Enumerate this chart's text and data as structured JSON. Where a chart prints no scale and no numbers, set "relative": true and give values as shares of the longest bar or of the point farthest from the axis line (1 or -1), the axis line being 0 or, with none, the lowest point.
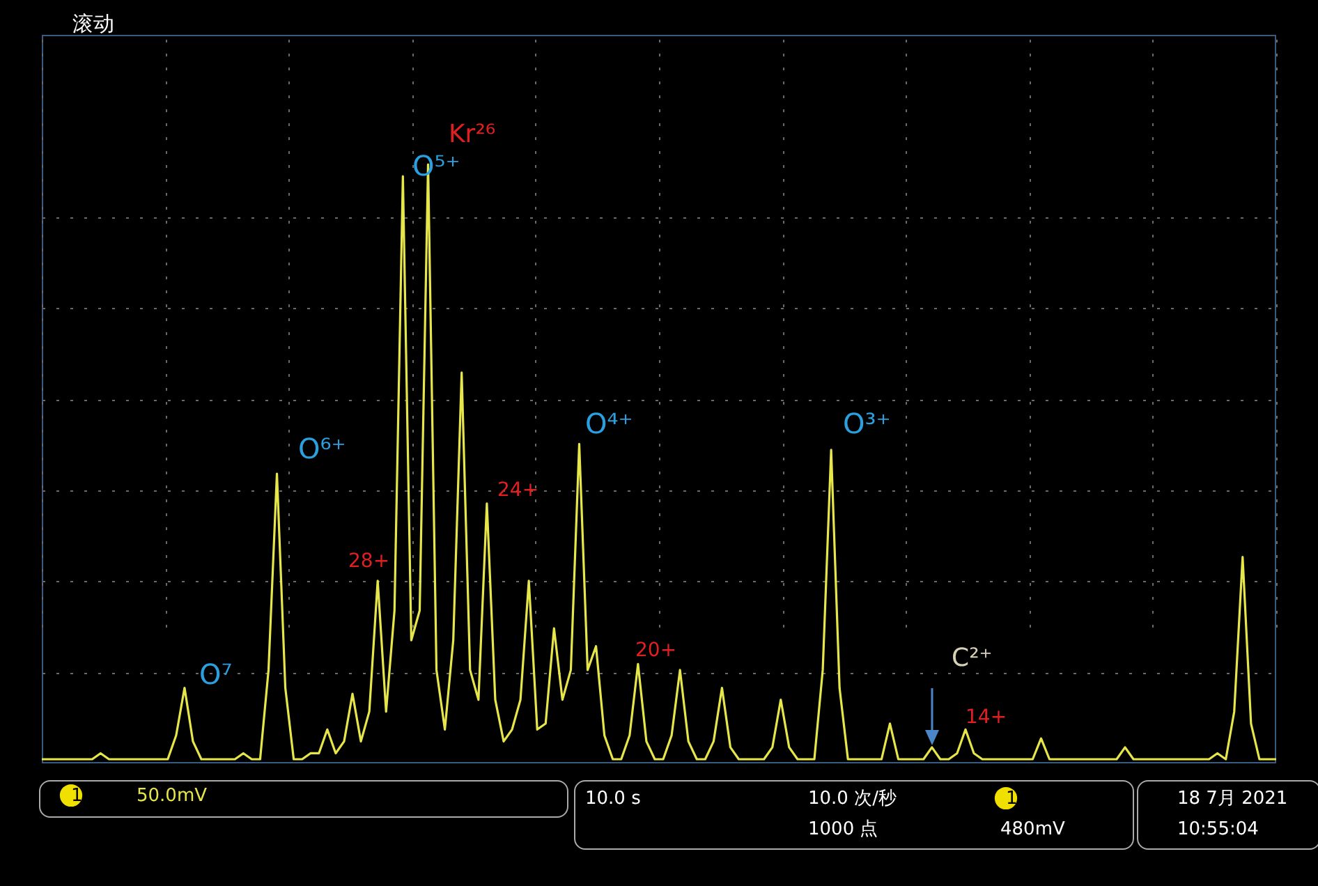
{
  "chart_data": {
    "type": "line",
    "relative": true,
    "grid": true,
    "categories": [
      null,
      null,
      null,
      null,
      null,
      null,
      null,
      null,
      null,
      null,
      null,
      null,
      null,
      null,
      null,
      null,
      null,
      null,
      null,
      null,
      null,
      null,
      null,
      null,
      null,
      null,
      null,
      null,
      null,
      null,
      null,
      null,
      null,
      null,
      null,
      null,
      null,
      null,
      null,
      null,
      null,
      null,
      null,
      null,
      null,
      null,
      null,
      null,
      null,
      null,
      null,
      null,
      null,
      null,
      null,
      null,
      null,
      null,
      null,
      null,
      null,
      null,
      null,
      null,
      null,
      null,
      null,
      null,
      null,
      null,
      null,
      null,
      null,
      null,
      null,
      null,
      null,
      null,
      null,
      null,
      null,
      null,
      null,
      null,
      null,
      null,
      null,
      null,
      null,
      null,
      null,
      null,
      null,
      null,
      null,
      null,
      null,
      null,
      null,
      null,
      null,
      null,
      null,
      null,
      null,
      null,
      null,
      null,
      null,
      null,
      null,
      null,
      null,
      null,
      null,
      null,
      null,
      null,
      null,
      null,
      null,
      null,
      null,
      null,
      null,
      null,
      null,
      null,
      null,
      null,
      null,
      null,
      null,
      null,
      null,
      null,
      null,
      null,
      null,
      null,
      null,
      null,
      null,
      null,
      null,
      null,
      null,
      null
    ],
    "series": [
      {
        "color": "#e6e64a",
        "values": [
          0,
          0,
          0,
          0,
          0,
          0,
          0,
          0.01,
          0,
          0,
          0,
          0,
          0,
          0,
          0,
          0,
          0.04,
          0.12,
          0.03,
          0,
          0,
          0,
          0,
          0,
          0.01,
          0,
          0,
          0.15,
          0.48,
          0.12,
          0,
          0,
          0.01,
          0.01,
          0.05,
          0.01,
          0.03,
          0.11,
          0.03,
          0.08,
          0.3,
          0.08,
          0.25,
          0.98,
          0.2,
          0.25,
          1,
          0.15,
          0.05,
          0.2,
          0.65,
          0.15,
          0.1,
          0.43,
          0.1,
          0.03,
          0.05,
          0.1,
          0.3,
          0.05,
          0.06,
          0.22,
          0.1,
          0.15,
          0.53,
          0.15,
          0.19,
          0.04,
          0,
          0,
          0.04,
          0.16,
          0.03,
          0,
          0,
          0.04,
          0.15,
          0.03,
          0,
          0,
          0.03,
          0.12,
          0.02,
          0,
          0,
          0,
          0,
          0.02,
          0.1,
          0.02,
          0,
          0,
          0,
          0.15,
          0.52,
          0.12,
          0,
          0,
          0,
          0,
          0,
          0.06,
          0,
          0,
          0,
          0,
          0.02,
          0,
          0,
          0.01,
          0.05,
          0.01,
          0,
          0,
          0,
          0,
          0,
          0,
          0,
          0.035,
          0,
          0,
          0,
          0,
          0,
          0,
          0,
          0,
          0,
          0.02,
          0,
          0,
          0,
          0,
          0,
          0,
          0,
          0,
          0,
          0,
          0.01,
          0,
          0.08,
          0.34,
          0.06,
          0,
          0,
          0
        ]
      }
    ],
    "annotations": [
      "滚动",
      "O⁷",
      "O⁶⁺",
      "O⁵⁺",
      "Kr²⁶",
      "28+",
      "24+",
      "O⁴⁺",
      "20+",
      "O³⁺",
      "C²⁺",
      "14+",
      "1",
      "50.0mV",
      "10.0 s",
      "10.0 次/秒",
      "1000 点",
      "1",
      "480mV",
      "18 7月 2021",
      "10:55:04"
    ]
  }
}
